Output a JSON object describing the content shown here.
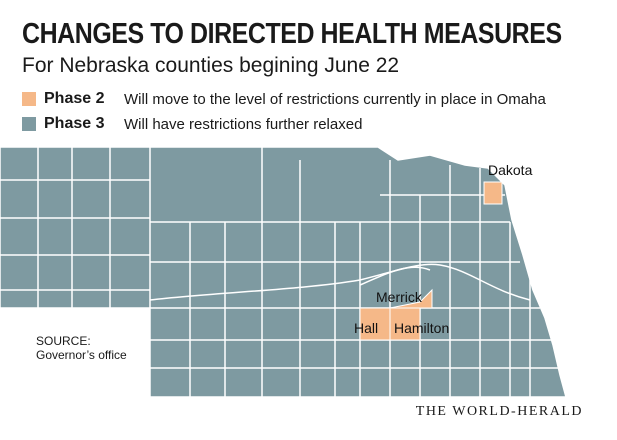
{
  "title": "CHANGES TO DIRECTED HEALTH MEASURES",
  "subtitle": "For Nebraska counties begining June 22",
  "legend": [
    {
      "label": "Phase 2",
      "description": "Will move to the level of restrictions currently in place in Omaha",
      "color": "#f5b888"
    },
    {
      "label": "Phase 3",
      "description": "Will have restrictions further relaxed",
      "color": "#7e9aa1"
    }
  ],
  "map": {
    "base_color": "#7e9aa1",
    "highlight_color": "#f5b888",
    "line_color": "#ffffff",
    "phase2_counties": [
      "Dakota",
      "Merrick",
      "Hall",
      "Hamilton"
    ]
  },
  "source": {
    "label": "SOURCE:",
    "text": "Governor’s office"
  },
  "credit": "THE WORLD-HERALD"
}
